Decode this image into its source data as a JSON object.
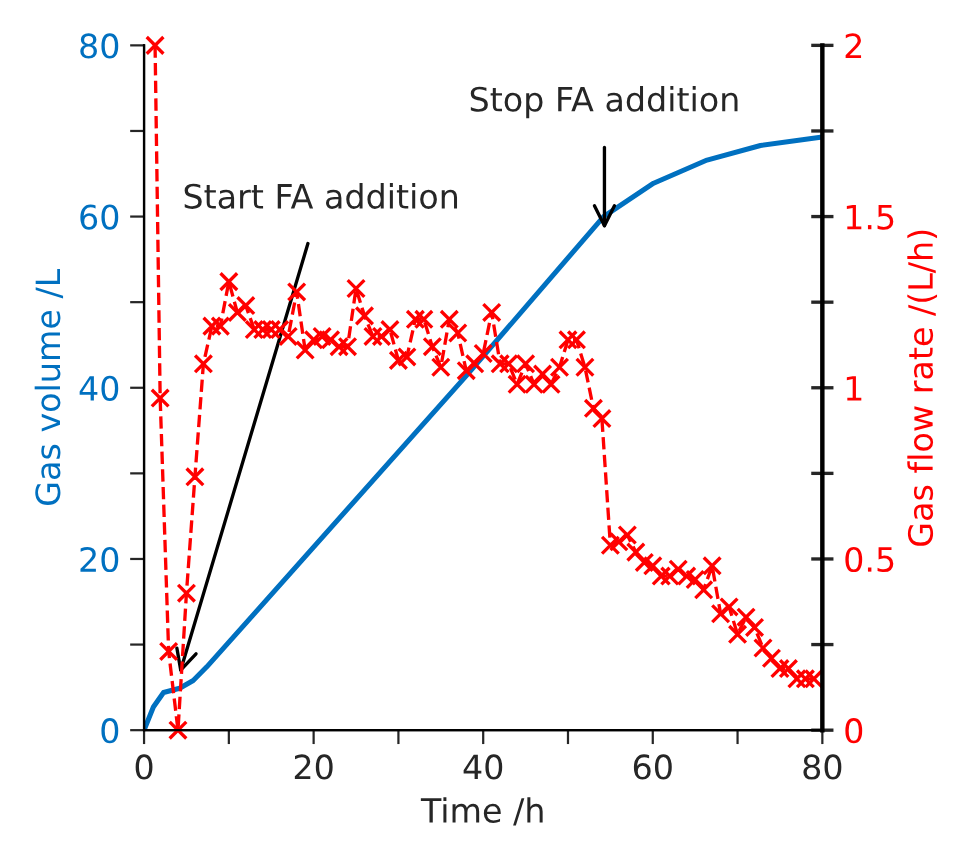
{
  "chart_data": {
    "type": "line",
    "xlabel": "Time /h",
    "ylabel": "Gas volume /L",
    "y2label": "Gas flow rate /(L/h)",
    "xlim": [
      0,
      80
    ],
    "xticks": [
      0,
      {
        "value": 10,
        "label": null
      },
      20,
      {
        "value": 30,
        "label": null
      },
      40,
      {
        "value": 50,
        "label": null
      },
      60,
      {
        "value": 70,
        "label": null
      },
      80
    ],
    "ylim": [
      0,
      80
    ],
    "yticks": [
      0,
      {
        "value": 10,
        "label": null
      },
      20,
      {
        "value": 30,
        "label": null
      },
      40,
      {
        "value": 50,
        "label": null
      },
      60,
      {
        "value": 70,
        "label": null
      },
      80
    ],
    "y2lim": [
      0,
      2
    ],
    "y2ticks": [
      0,
      {
        "value": 0.25,
        "label": null
      },
      0.5,
      {
        "value": 0.75,
        "label": null
      },
      1,
      {
        "value": 1.25,
        "label": null
      },
      1.5,
      {
        "value": 1.75,
        "label": null
      },
      2
    ],
    "grid": false,
    "legend": false,
    "series": [
      {
        "color": "#0070c0",
        "marker": "none",
        "line_style": "solid",
        "x": [
          0,
          1.1,
          2.3,
          4.2,
          5.8,
          7.4,
          38.1,
          54.2,
          60.1,
          66.4,
          72.7,
          80
        ],
        "values": [
          0,
          2.7,
          4.4,
          4.9,
          5.8,
          7.4,
          41.5,
          60.0,
          63.9,
          66.6,
          68.3,
          69.3
        ]
      },
      {
        "color": "#ff0000",
        "axis": "y2",
        "marker": "cross",
        "line_style": "dashed",
        "x": [
          1.3,
          1.9,
          2.9,
          4,
          5,
          6,
          7,
          8,
          9,
          10,
          11,
          12,
          13,
          14,
          15,
          16,
          17,
          18,
          19,
          20,
          21,
          22,
          23,
          24,
          25,
          26,
          27,
          28,
          29,
          30,
          31,
          32,
          33,
          34,
          35,
          36,
          37,
          38,
          39,
          40,
          41,
          42,
          43,
          44,
          45,
          46,
          47,
          48,
          49,
          50,
          51,
          52,
          53,
          54,
          55,
          56,
          57,
          58,
          59,
          60,
          61,
          62,
          63,
          64,
          65,
          66,
          67,
          68,
          69,
          70,
          71,
          72,
          73,
          74,
          75,
          76,
          77,
          78,
          79
        ],
        "values": [
          2,
          0.97,
          0.23,
          0,
          0.4,
          0.74,
          1.07,
          1.18,
          1.18,
          1.31,
          1.22,
          1.24,
          1.17,
          1.17,
          1.17,
          1.17,
          1.15,
          1.28,
          1.11,
          1.14,
          1.15,
          1.14,
          1.12,
          1.12,
          1.29,
          1.21,
          1.15,
          1.15,
          1.17,
          1.08,
          1.09,
          1.2,
          1.2,
          1.12,
          1.06,
          1.2,
          1.16,
          1.05,
          1.07,
          1.1,
          1.22,
          1.07,
          1.07,
          1.01,
          1.07,
          1.01,
          1.04,
          1.01,
          1.06,
          1.14,
          1.14,
          1.06,
          0.94,
          0.91,
          0.54,
          0.55,
          0.57,
          0.52,
          0.49,
          0.48,
          0.45,
          0.45,
          0.47,
          0.45,
          0.44,
          0.41,
          0.48,
          0.34,
          0.36,
          0.28,
          0.33,
          0.3,
          0.24,
          0.21,
          0.18,
          0.18,
          0.15,
          0.15,
          0.15
        ]
      }
    ],
    "annotations": [
      {
        "text": "Start FA addition",
        "x": 4.2,
        "y": 6.6
      },
      {
        "text": "Stop FA addition",
        "x": 54.3,
        "y": 58.5
      }
    ]
  }
}
